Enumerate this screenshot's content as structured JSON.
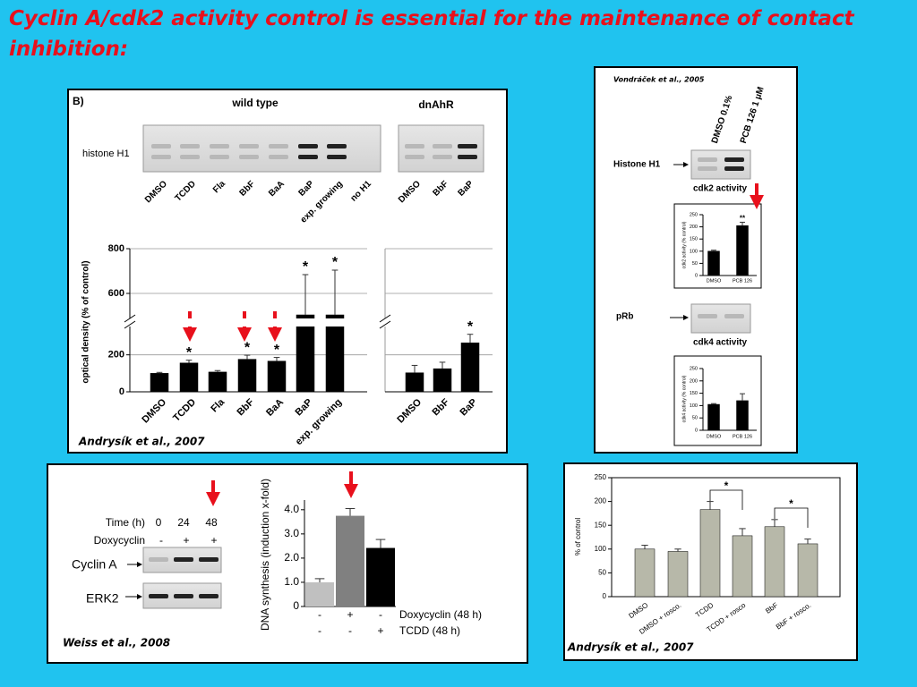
{
  "title": "Cyclin A/cdk2 activity control is essential for the maintenance of contact inhibition:",
  "panel_b": {
    "label": "B)",
    "groups": [
      "wild type",
      "dnAhR"
    ],
    "row_label": "histone H1",
    "lanes_wt": [
      "DMSO",
      "TCDD",
      "Fla",
      "BbF",
      "BaA",
      "BaP",
      "exp. growing",
      "no H1"
    ],
    "lanes_dn": [
      "DMSO",
      "BbF",
      "BaP"
    ],
    "citation": "Andrysík et al., 2007"
  },
  "panel_v": {
    "citation": "Vondráček et al., 2005",
    "lanes": [
      "DMSO 0.1%",
      "PCB 126 1 µM"
    ],
    "blot1": "Histone H1",
    "caption1": "cdk2 activity",
    "blot2": "pRb",
    "caption2": "cdk4 activity"
  },
  "panel_w": {
    "citation": "Weiss et al., 2008",
    "time_label": "Time (h)",
    "times": [
      "0",
      "24",
      "48"
    ],
    "dox_label": "Doxycyclin",
    "dox": [
      "-",
      "+",
      "+"
    ],
    "rows": [
      "Cyclin A",
      "ERK2"
    ]
  },
  "panel_a": {
    "citation": "Andrysík et al., 2007"
  },
  "chart_data": [
    {
      "type": "bar",
      "y_label": "optical density (% of control)",
      "categories": [
        "DMSO",
        "TCDD",
        "Fla",
        "BbF",
        "BaA",
        "BaP",
        "exp. growing"
      ],
      "values": [
        100,
        156,
        107,
        176,
        166,
        504,
        504
      ],
      "errors": [
        5,
        15,
        8,
        22,
        20,
        180,
        200
      ],
      "value_annotations": [
        null,
        "*",
        null,
        "*",
        "*",
        "*",
        "*"
      ],
      "color": "#000000",
      "ylim": [
        0,
        800
      ],
      "axis_break": [
        300,
        500
      ],
      "yticks": [
        0,
        200,
        600,
        800
      ],
      "grid": true
    },
    {
      "type": "bar",
      "categories": [
        "DMSO",
        "BbF",
        "BaP"
      ],
      "values": [
        103,
        125,
        265
      ],
      "errors": [
        40,
        35,
        55
      ],
      "value_annotations": [
        null,
        null,
        "*"
      ],
      "color": "#000000",
      "ylim": [
        0,
        800
      ],
      "axis_break": [
        300,
        500
      ],
      "yticks": [
        0,
        200,
        600,
        800
      ],
      "grid": true
    },
    {
      "type": "bar",
      "y_label": "cdk2 activity (% control)",
      "categories": [
        "DMSO",
        "PCB 126"
      ],
      "values": [
        100,
        205
      ],
      "errors": [
        4,
        14
      ],
      "value_annotations": [
        null,
        "**"
      ],
      "color": "#000000",
      "ylim": [
        0,
        250
      ],
      "yticks": [
        0,
        50,
        100,
        150,
        200,
        250
      ]
    },
    {
      "type": "bar",
      "y_label": "cdk4 activity (% control)",
      "categories": [
        "DMSO",
        "PCB 126"
      ],
      "values": [
        105,
        120
      ],
      "errors": [
        3,
        28
      ],
      "color": "#000000",
      "ylim": [
        0,
        250
      ],
      "yticks": [
        0,
        50,
        100,
        150,
        200,
        250
      ]
    },
    {
      "type": "bar",
      "y_label": "DNA synthesis (induction x-fold)",
      "values": [
        1.0,
        3.75,
        2.42
      ],
      "errors": [
        0.15,
        0.3,
        0.35
      ],
      "colors": [
        "#c0c0c0",
        "#808080",
        "#000000"
      ],
      "ylim": [
        0,
        4.4
      ],
      "yticks": [
        0,
        {
          "value": 1,
          "label": "1.0"
        },
        {
          "value": 2,
          "label": "2.0"
        },
        {
          "value": 3,
          "label": "3.0"
        },
        {
          "value": 4,
          "label": "4.0"
        }
      ],
      "treatments": [
        {
          "name": "Doxycyclin (48 h)",
          "values": [
            "-",
            "+",
            "-"
          ]
        },
        {
          "name": "TCDD (48 h)",
          "values": [
            "-",
            "-",
            "+"
          ]
        }
      ]
    },
    {
      "type": "bar",
      "y_label": "% of control",
      "categories": [
        "DMSO",
        "DMSO + rosco.",
        "TCDD",
        "TCDD + rosco",
        "BbF",
        "BbF + rosco."
      ],
      "values": [
        100,
        95,
        183,
        128,
        147,
        111
      ],
      "errors": [
        8,
        5,
        17,
        15,
        15,
        10
      ],
      "color": "#b7b8a9",
      "ylim": [
        0,
        250
      ],
      "yticks": [
        0,
        50,
        100,
        150,
        200,
        250
      ],
      "brackets": [
        {
          "categories": [
            2,
            3
          ],
          "label": "*"
        },
        {
          "categories": [
            4,
            5
          ],
          "label": "*"
        }
      ]
    }
  ]
}
